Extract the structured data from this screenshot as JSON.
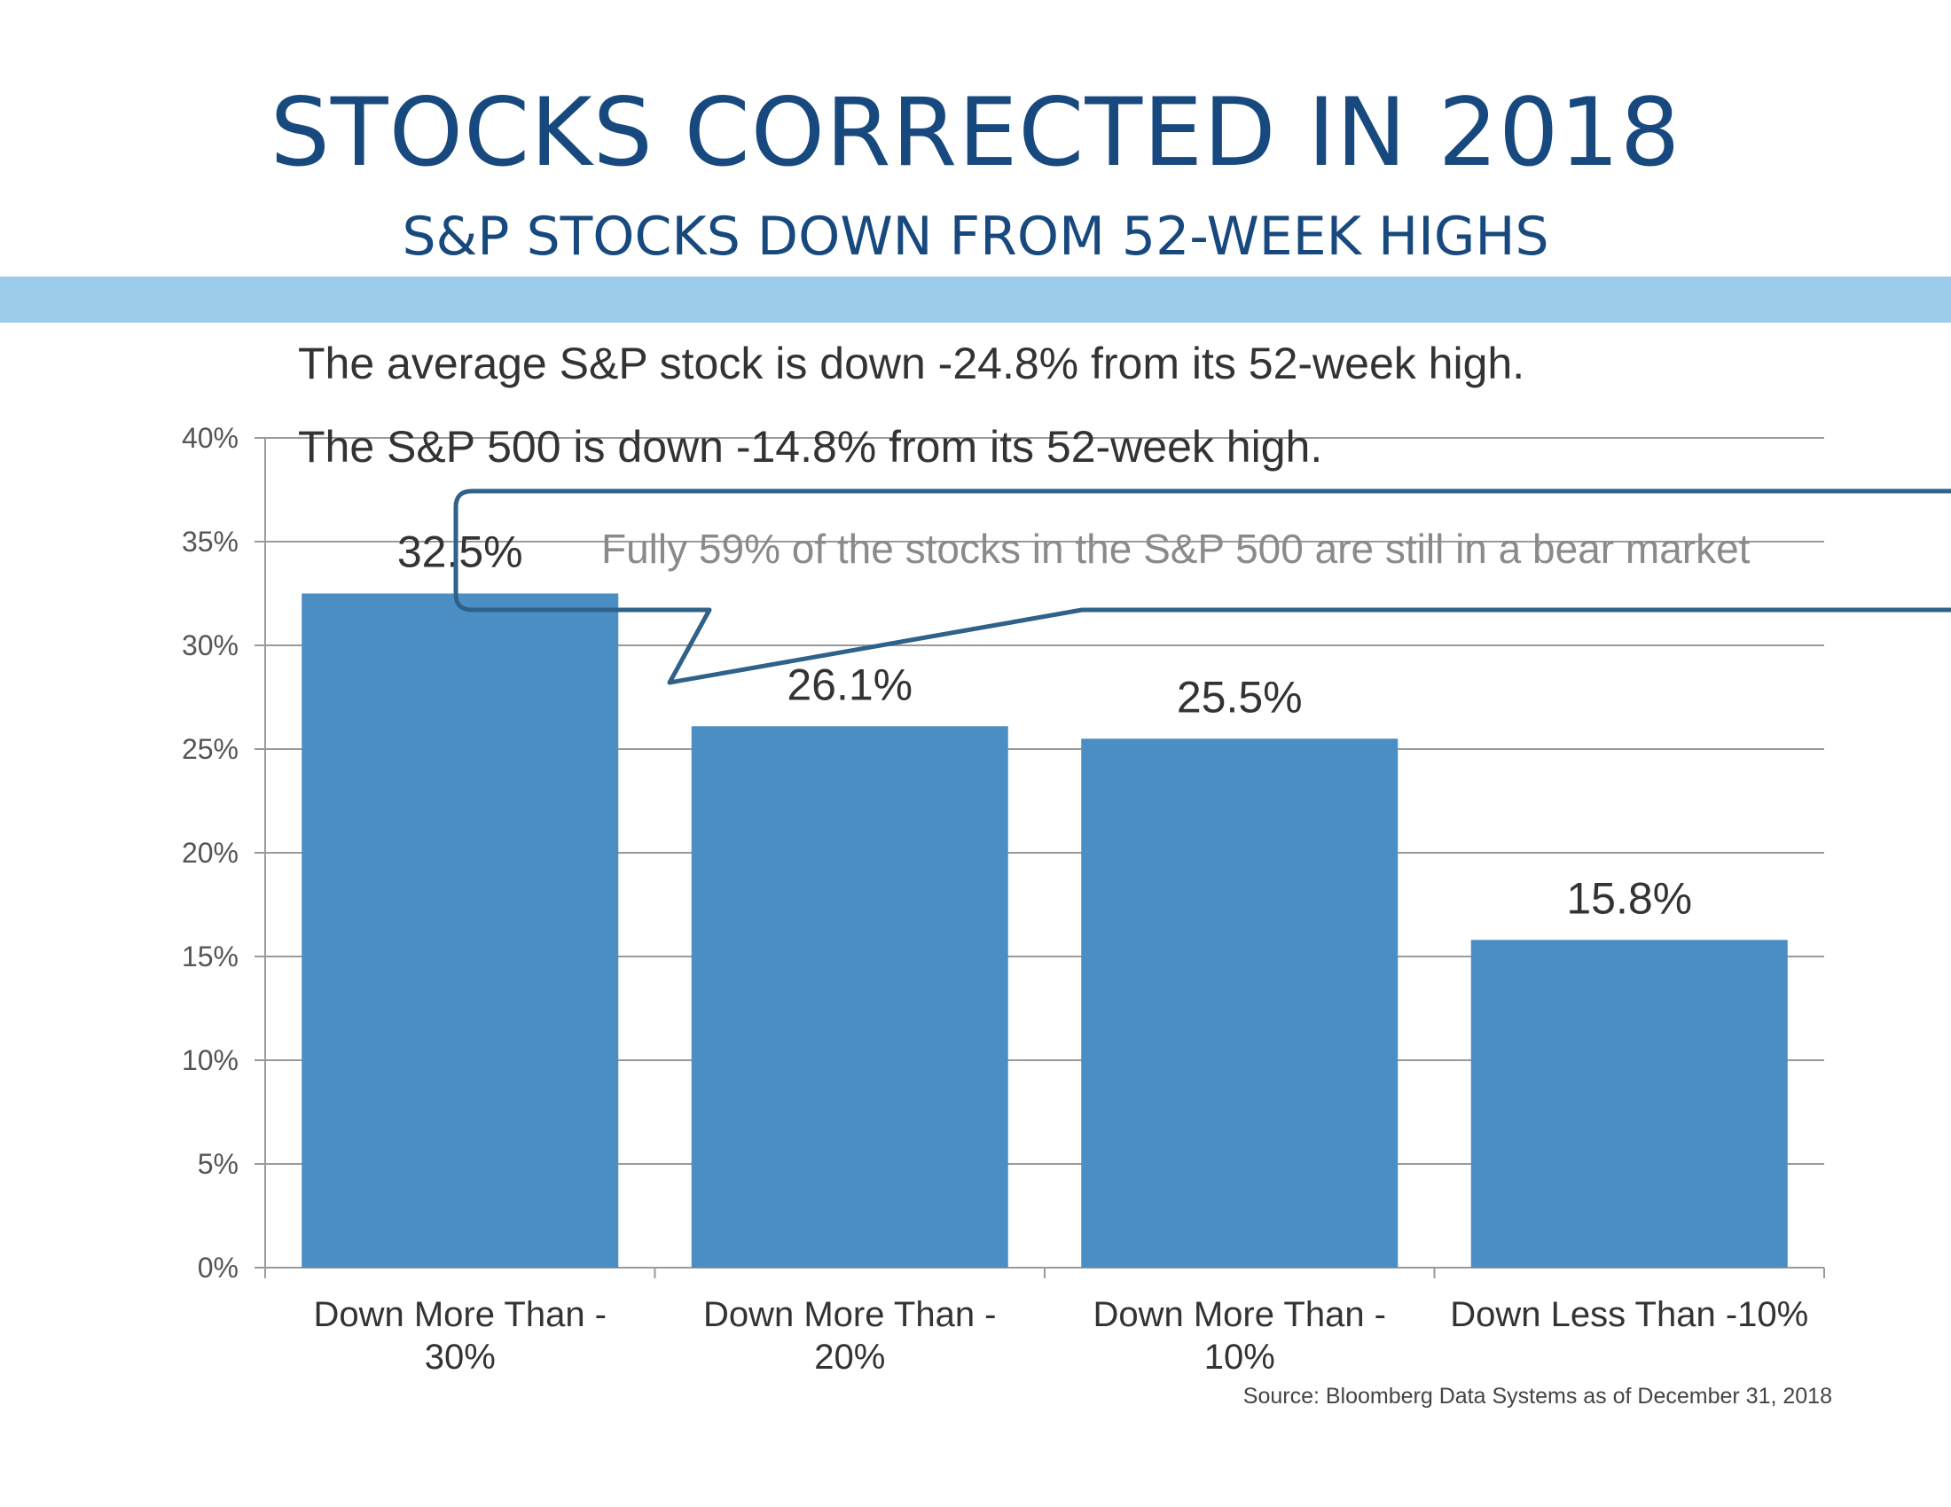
{
  "header": {
    "title": "STOCKS CORRECTED IN 2018",
    "subtitle": "S&P STOCKS DOWN FROM 52-WEEK HIGHS"
  },
  "notes": {
    "line1": "The average S&P stock is down -24.8% from its 52-week high.",
    "line2": "The S&P 500 is down -14.8% from its 52-week high.",
    "callout": "Fully 59% of the stocks in the S&P 500 are still in a bear market"
  },
  "source": "Source:  Bloomberg Data Systems as of December 31, 2018",
  "colors": {
    "title": "#17497f",
    "band": "#9ccbeb",
    "bar": "#4a8ec4",
    "callout_border": "#2f6189",
    "grid": "#9a9a9a"
  },
  "chart_data": {
    "type": "bar",
    "categories": [
      [
        "Down More Than -",
        "30%"
      ],
      [
        "Down More Than -",
        "20%"
      ],
      [
        "Down More Than -",
        "10%"
      ],
      [
        "Down Less Than -10%"
      ]
    ],
    "values": [
      32.5,
      26.1,
      25.5,
      15.8
    ],
    "value_labels": [
      "32.5%",
      "26.1%",
      "25.5%",
      "15.8%"
    ],
    "yticks": [
      "0%",
      "5%",
      "10%",
      "15%",
      "20%",
      "25%",
      "30%",
      "35%",
      "40%"
    ],
    "ylim": [
      0,
      40
    ],
    "ytick_step": 5,
    "grid": true,
    "legend": "none"
  }
}
